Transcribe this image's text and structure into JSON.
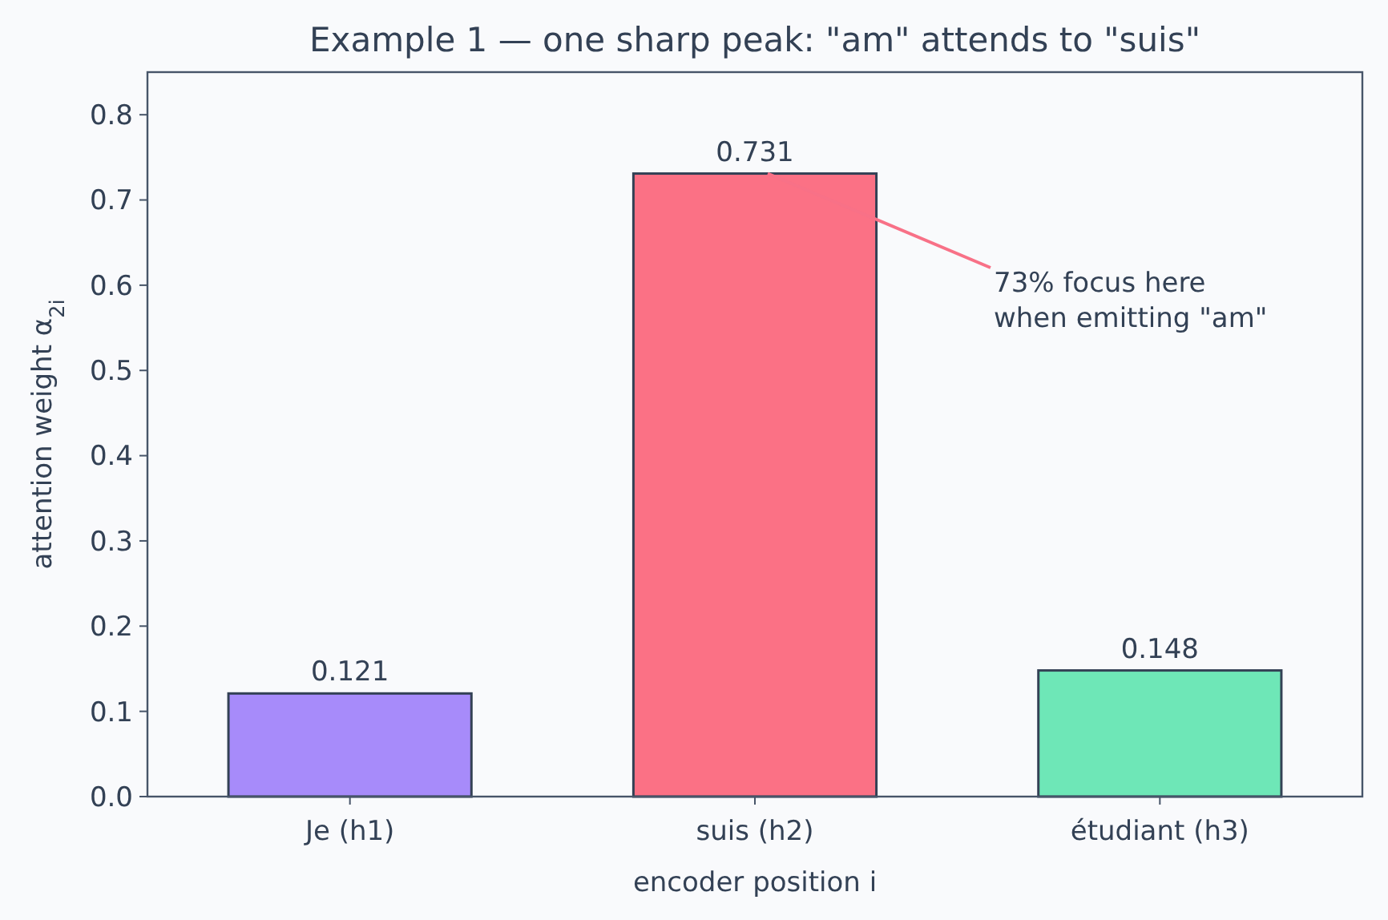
{
  "chart_data": {
    "type": "bar",
    "title": "Example 1 — one sharp peak: \"am\" attends to \"suis\"",
    "categories": [
      "Je (h1)",
      "suis (h2)",
      "étudiant (h3)"
    ],
    "values": [
      0.121,
      0.731,
      0.148
    ],
    "colors": [
      "#a78bfa",
      "#fb7185",
      "#6ee7b7"
    ],
    "xlabel": "encoder position  i",
    "ylabel": "attention weight  α$_{2i}$",
    "ylim": [
      0,
      0.85
    ],
    "yticks": [
      {
        "value": 0,
        "label": "0.0"
      },
      0.1,
      0.2,
      0.3,
      0.4,
      0.5,
      0.6,
      0.7,
      0.8
    ],
    "grid": false,
    "data_labels": true,
    "annotations": [
      {
        "text": "73% focus here\nwhen emitting \"am\"",
        "x": "suis (h2)",
        "y": 0.731
      }
    ]
  }
}
